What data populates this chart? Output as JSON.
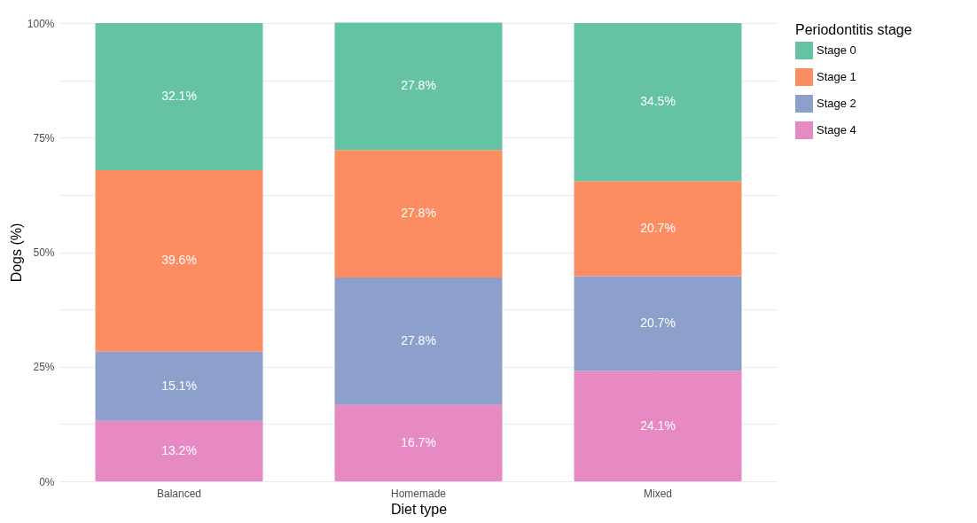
{
  "chart_data": {
    "type": "bar",
    "stacked": true,
    "xlabel": "Diet type",
    "ylabel": "Dogs (%)",
    "legend_title": "Periodontitis stage",
    "categories": [
      "Balanced",
      "Homemade",
      "Mixed"
    ],
    "series": [
      {
        "name": "Stage 4",
        "color": "#e78ac3",
        "values": [
          13.2,
          16.7,
          24.1
        ],
        "value_labels": [
          "13.2%",
          "16.7%",
          "24.1%"
        ]
      },
      {
        "name": "Stage 2",
        "color": "#8da0cb",
        "values": [
          15.1,
          27.8,
          20.7
        ],
        "value_labels": [
          "15.1%",
          "27.8%",
          "20.7%"
        ]
      },
      {
        "name": "Stage 1",
        "color": "#fc8d62",
        "values": [
          39.6,
          27.8,
          20.7
        ],
        "value_labels": [
          "39.6%",
          "27.8%",
          "20.7%"
        ]
      },
      {
        "name": "Stage 0",
        "color": "#66c2a5",
        "values": [
          32.1,
          27.8,
          34.5
        ],
        "value_labels": [
          "32.1%",
          "27.8%",
          "34.5%"
        ]
      }
    ],
    "ylim": [
      0,
      100
    ],
    "yticks": [
      {
        "value": 0,
        "label": "0%"
      },
      {
        "value": 12.5,
        "label": null
      },
      {
        "value": 25,
        "label": "25%"
      },
      {
        "value": 37.5,
        "label": null
      },
      {
        "value": 50,
        "label": "50%"
      },
      {
        "value": 62.5,
        "label": null
      },
      {
        "value": 75,
        "label": "75%"
      },
      {
        "value": 87.5,
        "label": null
      },
      {
        "value": 100,
        "label": "100%"
      }
    ],
    "grid": true,
    "legend": "right"
  }
}
